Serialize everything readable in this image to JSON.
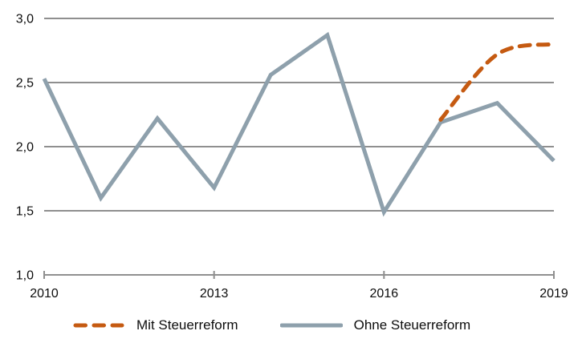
{
  "chart_data": {
    "type": "line",
    "title": "",
    "xlabel": "",
    "ylabel": "",
    "xlim": [
      2010,
      2019
    ],
    "ylim": [
      1.0,
      3.0
    ],
    "grid": "horizontal-only",
    "legend_position": "bottom",
    "decimal_style": "german-comma",
    "x_tick_years": [
      2010,
      2013,
      2016,
      2019
    ],
    "x_tick_labels": [
      "2010",
      "2013",
      "2016",
      "2019"
    ],
    "y_ticks": [
      {
        "value": 3.0,
        "label": "3,0"
      },
      {
        "value": 2.5,
        "label": "2,5"
      },
      {
        "value": 2.0,
        "label": "2,0"
      },
      {
        "value": 1.5,
        "label": "1,5"
      },
      {
        "value": 1.0,
        "label": "1,0"
      }
    ],
    "series": [
      {
        "name": "Mit Steuerreform",
        "style": "dashed",
        "line_shape": "smooth",
        "color": "#C55A11",
        "x": [
          2017,
          2018,
          2019
        ],
        "values": [
          2.21,
          2.72,
          2.8
        ]
      },
      {
        "name": "Ohne Steuerreform",
        "style": "solid",
        "line_shape": "straight",
        "color": "#8EA0AC",
        "x": [
          2010,
          2011,
          2012,
          2013,
          2014,
          2015,
          2016,
          2017,
          2018,
          2019
        ],
        "values": [
          2.53,
          1.6,
          2.22,
          1.68,
          2.56,
          2.87,
          1.49,
          2.19,
          2.34,
          1.89
        ]
      }
    ],
    "colors": {
      "gridline": "#8F8F8F",
      "axis": "#8F8F8F",
      "text": "#0d0d0d"
    }
  }
}
